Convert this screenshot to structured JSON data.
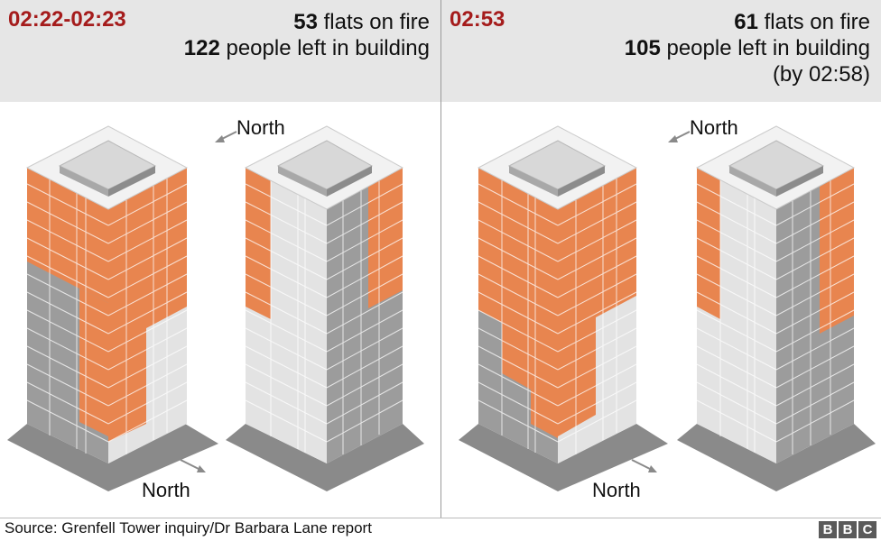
{
  "panels": [
    {
      "time": "02:22-02:23",
      "flats_num": "53",
      "flats_text": "flats on fire",
      "people_num": "122",
      "people_text": "people left in building",
      "note": ""
    },
    {
      "time": "02:53",
      "flats_num": "61",
      "flats_text": "flats on fire",
      "people_num": "105",
      "people_text": "people left in building",
      "note": "(by 02:58)"
    }
  ],
  "labels": {
    "north": "North"
  },
  "footer": {
    "source": "Source: Grenfell Tower inquiry/Dr Barbara Lane report",
    "logo": [
      "B",
      "B",
      "C"
    ]
  },
  "colors": {
    "fire": "#e8854f",
    "fire_dark": "#d6733f",
    "light_face": "#e3e3e3",
    "dark_face": "#9c9c9c",
    "roof": "#f2f2f2",
    "accent": "#a51c1c"
  }
}
